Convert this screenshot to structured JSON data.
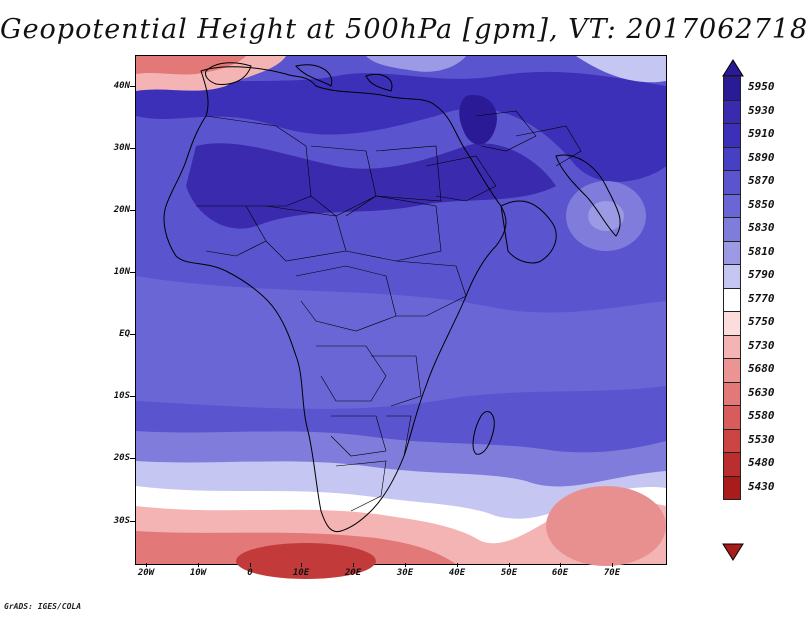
{
  "title": "Geopotential Height at 500hPa [gpm], VT: 2017062718",
  "lat_labels": [
    "40N",
    "30N",
    "20N",
    "10N",
    "EQ",
    "10S",
    "20S",
    "30S"
  ],
  "lon_labels": [
    "20W",
    "10W",
    "0",
    "10E",
    "20E",
    "30E",
    "40E",
    "50E",
    "60E",
    "70E"
  ],
  "colorbar": {
    "levels": [
      "5950",
      "5930",
      "5910",
      "5890",
      "5870",
      "5850",
      "5830",
      "5810",
      "5790",
      "5770",
      "5750",
      "5730",
      "5680",
      "5630",
      "5580",
      "5530",
      "5480",
      "5430"
    ],
    "colors": [
      "#2a1a96",
      "#3a2aae",
      "#3c30b8",
      "#4640c4",
      "#5a54cf",
      "#6a66d6",
      "#7f7cdc",
      "#9c9ae4",
      "#c6c6f2",
      "#ffffff",
      "#fcdcdc",
      "#f4b4b4",
      "#ec9494",
      "#e27878",
      "#d85c5c",
      "#cc4444",
      "#bb2e2e",
      "#a81c1c"
    ]
  },
  "field_colors": {
    "deep_blue": "#3c30b8",
    "mid_blue": "#5a54cf",
    "light_blue": "#8e8ce0",
    "pale_blue": "#c6c6f2",
    "white": "#ffffff",
    "light_red": "#f4b4b4",
    "mid_red": "#e27878",
    "deep_red": "#c23a3a"
  },
  "credit": "GrADS: IGES/COLA"
}
